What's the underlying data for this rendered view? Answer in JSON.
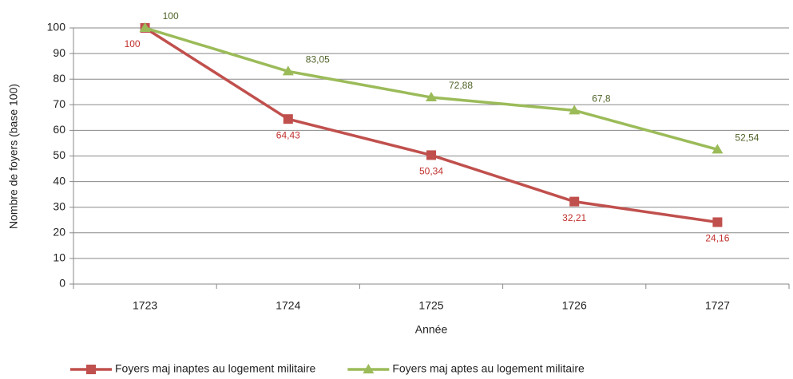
{
  "chart_data": {
    "type": "line",
    "x_label": "Année",
    "y_label": "Nombre de foyers (base 100)",
    "categories": [
      "1723",
      "1724",
      "1725",
      "1726",
      "1727"
    ],
    "series": [
      {
        "name": "Foyers maj inaptes au logement militaire",
        "color": "#c0504d",
        "marker": "square",
        "label_color": "#c0302d",
        "values": [
          100,
          64.43,
          50.34,
          32.21,
          24.16
        ],
        "value_labels": [
          "100",
          "64,43",
          "50,34",
          "32,21",
          "24,16"
        ]
      },
      {
        "name": "Foyers maj aptes au logement militaire",
        "color": "#9bbb59",
        "marker": "triangle",
        "label_color": "#4f6228",
        "values": [
          100,
          83.05,
          72.88,
          67.8,
          52.54
        ],
        "value_labels": [
          "100",
          "83,05",
          "72,88",
          "67,8",
          "52,54"
        ]
      }
    ],
    "ylim": [
      0,
      100
    ],
    "yticks": [
      0,
      10,
      20,
      30,
      40,
      50,
      60,
      70,
      80,
      90,
      100
    ],
    "grid": true,
    "legend": "bottom"
  }
}
